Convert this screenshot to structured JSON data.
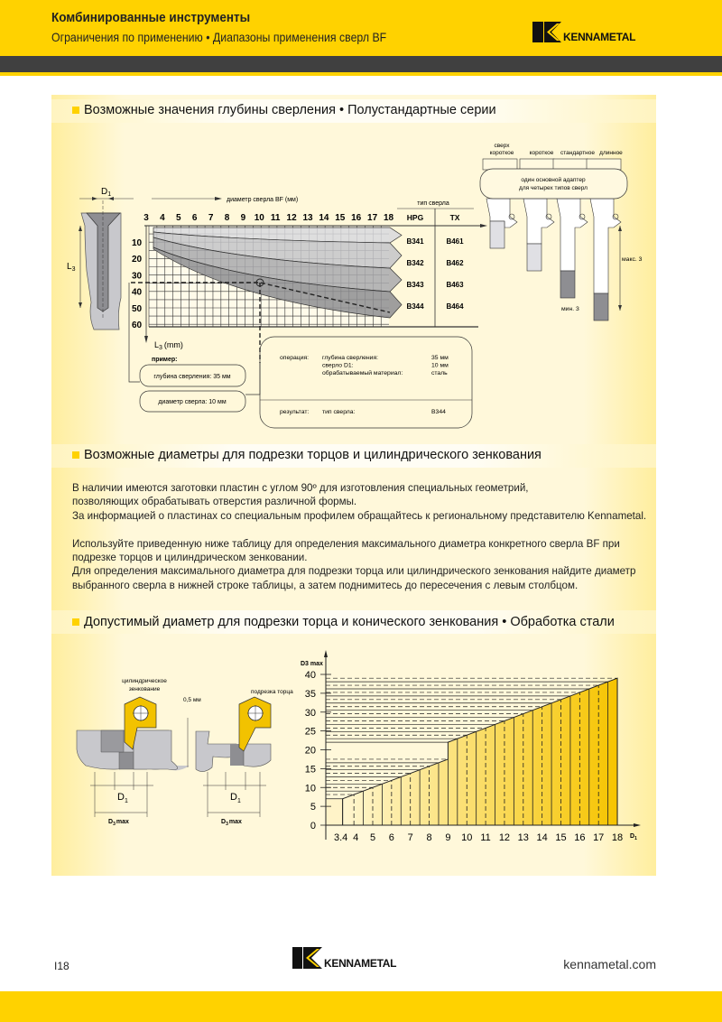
{
  "header": {
    "title": "Комбинированные инструменты",
    "subtitle": "Ограничения по применению • Диапазоны применения сверл BF",
    "logo": "KENNAMETAL"
  },
  "colors": {
    "brand_yellow": "#FFD200",
    "dark_bar": "#404040"
  },
  "section1": {
    "title": "Возможные значения глубины сверления • Полустандартные серии",
    "d1_label": "D",
    "d1_sub": "1",
    "l3_label": "L",
    "l3_sub": "3",
    "x_axis_label": "диаметр сверла BF (мм)",
    "x_ticks": [
      "3",
      "4",
      "5",
      "6",
      "7",
      "8",
      "9",
      "10",
      "11",
      "12",
      "13",
      "14",
      "15",
      "16",
      "17",
      "18"
    ],
    "y_ticks": [
      "10",
      "20",
      "30",
      "40",
      "50",
      "60"
    ],
    "y_axis_label": "L",
    "y_axis_sub": "3",
    "y_axis_unit": "(mm)",
    "drill_type_header": "тип сверла",
    "columns": [
      "HPG",
      "TX"
    ],
    "rows": [
      [
        "B341",
        "B461"
      ],
      [
        "B342",
        "B462"
      ],
      [
        "B343",
        "B463"
      ],
      [
        "B344",
        "B464"
      ]
    ],
    "example": {
      "label": "пример:",
      "depth": "глубина сверления: 35 мм",
      "diameter": "диаметр сверла: 10 мм"
    },
    "result_box": {
      "operation_label": "операция:",
      "lines": [
        [
          "глубина сверления:",
          "35 мм"
        ],
        [
          "сверло D1:",
          "10 мм"
        ],
        [
          "обрабатываемый материал:",
          "сталь"
        ]
      ],
      "result_label": "результат:",
      "result_key": "тип сверла:",
      "result_value": "B344"
    },
    "adapter": {
      "types": [
        "сверх",
        "короткое",
        "короткое",
        "стандартное",
        "длинное"
      ],
      "adapter_text_1": "один основной адаптер",
      "adapter_text_2": "для четырех типов сверл",
      "max_label": "макс. 3",
      "min_label": "мин. 3"
    }
  },
  "section2": {
    "title": "Возможные диаметры для подрезки торцов и цилиндрического зенкования",
    "lines": [
      "В наличии имеются заготовки пластин с углом 90º для изготовления специальных геометрий,",
      "позволяющих обрабатывать отверстия различной формы.",
      "За информацией о пластинах со специальным профилем обращайтесь к региональному представителю Kennametal.",
      "",
      "Используйте приведенную ниже таблицу для определения максимального диаметра конкретного сверла BF при",
      "подрезке торцов и цилиндрическом зенковании.",
      "Для определения максимального диаметра для подрезки торца или цилиндрического зенкования найдите диаметр",
      "выбранного сверла в нижней строке таблицы, а затем поднимитесь до пересечения с левым столбцом."
    ]
  },
  "section3": {
    "title": "Допустимый диаметр для подрезки торца и конического зенкования • Обработка стали",
    "counterbore_label_1": "цилиндрическое",
    "counterbore_label_2": "зенкование",
    "gap_label": "0,5 мм",
    "facing_label": "подрезка торца",
    "d1": "D",
    "d1_sub": "1",
    "d3": "D",
    "d3_sub": "3",
    "d3_max": "max"
  },
  "chart_data": {
    "type": "area",
    "xlabel": "D1",
    "ylabel": "D3 max",
    "x_ticks": [
      "3.4",
      "4",
      "5",
      "6",
      "7",
      "8",
      "9",
      "10",
      "11",
      "12",
      "13",
      "14",
      "15",
      "16",
      "17",
      "18"
    ],
    "y_ticks": [
      "0",
      "5",
      "10",
      "15",
      "20",
      "25",
      "30",
      "35",
      "40"
    ],
    "xlim": [
      3.4,
      18
    ],
    "ylim": [
      0,
      40
    ],
    "series": [
      {
        "points": [
          [
            3.4,
            7
          ],
          [
            9,
            17.5
          ],
          [
            9,
            22
          ],
          [
            18,
            39
          ]
        ]
      }
    ],
    "grid": true
  },
  "footer": {
    "page": "I18",
    "url": "kennametal.com",
    "logo": "KENNAMETAL"
  }
}
